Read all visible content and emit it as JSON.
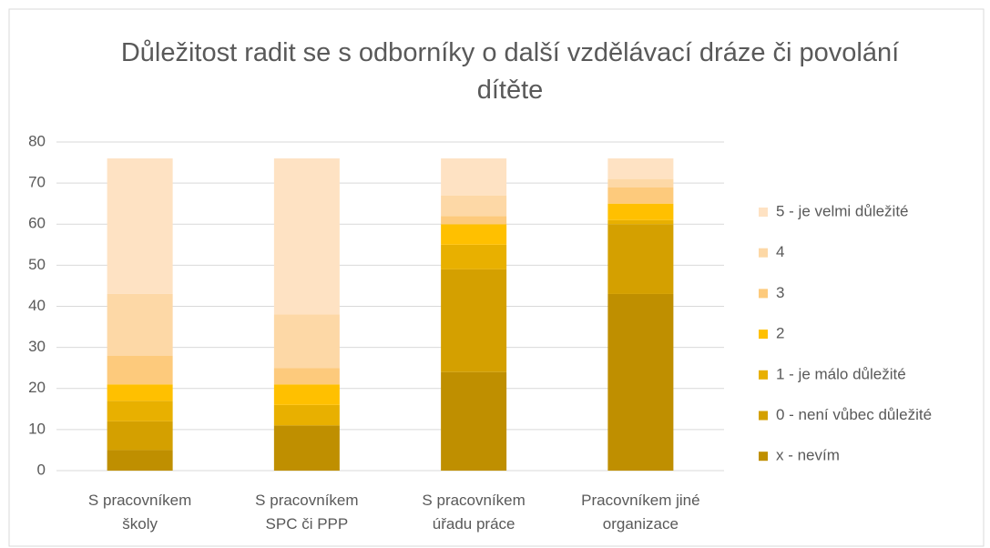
{
  "chart_data": {
    "type": "stacked_bar",
    "title": "Důležitost radit se s odborníky o další vzdělávací dráze či povolání dítěte",
    "categories": [
      "S pracovníkem\nškoly",
      "S pracovníkem\nSPC či PPP",
      "S pracovníkem\núřadu práce",
      "Pracovníkem jiné\norganizace"
    ],
    "series": [
      {
        "name": "x - nevím",
        "color": "#bf8f00",
        "values": [
          5,
          11,
          24,
          43
        ]
      },
      {
        "name": "0 - není vůbec důležité",
        "color": "#d4a000",
        "values": [
          7,
          0,
          25,
          17
        ]
      },
      {
        "name": "1 - je málo důležité",
        "color": "#e8b000",
        "values": [
          5,
          5,
          6,
          1
        ]
      },
      {
        "name": "2",
        "color": "#ffc000",
        "values": [
          4,
          5,
          5,
          4
        ]
      },
      {
        "name": "3",
        "color": "#fdca7c",
        "values": [
          7,
          4,
          2,
          4
        ]
      },
      {
        "name": "4",
        "color": "#fdd8a6",
        "values": [
          15,
          13,
          5,
          2
        ]
      },
      {
        "name": "5 - je velmi důležité",
        "color": "#fee2c3",
        "values": [
          33,
          38,
          9,
          5
        ]
      }
    ],
    "ylim": [
      0,
      80
    ],
    "yticks": [
      0,
      10,
      20,
      30,
      40,
      50,
      60,
      70,
      80
    ],
    "grid": true,
    "legend": "right"
  }
}
